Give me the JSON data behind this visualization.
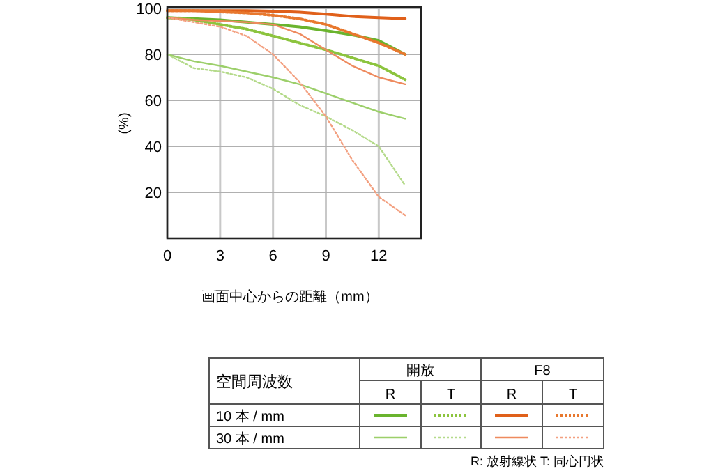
{
  "chart_data": {
    "type": "line",
    "xlabel": "画面中心からの距離（mm）",
    "ylabel": "(%)",
    "x": [
      0,
      1.5,
      3,
      4.5,
      6,
      7.5,
      9,
      10.5,
      12,
      13.5
    ],
    "xlim": [
      0,
      14.4
    ],
    "xticks": [
      0,
      3,
      6,
      9,
      12
    ],
    "ylim": [
      0,
      100
    ],
    "yticks": [
      20,
      40,
      60,
      80,
      100
    ],
    "grid": true,
    "legend_title": "空間周波数",
    "annotations": [
      "開放",
      "F8",
      "R",
      "T",
      "10 本 / mm",
      "30 本 / mm",
      "R: 放射線状  T: 同心円状"
    ],
    "series": [
      {
        "color": "#6ab42e",
        "line_style": "solid",
        "values": [
          96,
          95.5,
          95,
          94,
          93,
          92,
          90.3,
          88.5,
          86,
          80
        ]
      },
      {
        "color": "#8cc43e",
        "line_style": "dotted",
        "values": [
          96,
          95,
          93,
          91,
          88,
          85,
          82,
          78.5,
          75,
          69
        ]
      },
      {
        "color": "#e0601a",
        "line_style": "solid",
        "values": [
          99,
          99,
          99,
          99,
          98.8,
          98.3,
          97.5,
          96.5,
          96,
          95.5
        ]
      },
      {
        "color": "#e8782e",
        "line_style": "dotted",
        "values": [
          99,
          99,
          98.5,
          98,
          97,
          95.5,
          93,
          89,
          85,
          80
        ]
      },
      {
        "color": "#9ccf6a",
        "line_style": "solid",
        "values": [
          80,
          77,
          75,
          72.5,
          70,
          67,
          63,
          59,
          55,
          52
        ]
      },
      {
        "color": "#b4da8a",
        "line_style": "dotted",
        "values": [
          80,
          74,
          72.5,
          70,
          65,
          58,
          53,
          47,
          40,
          23
        ]
      },
      {
        "color": "#ee8a5e",
        "line_style": "solid",
        "values": [
          96,
          95,
          94.5,
          94,
          93,
          89,
          82,
          75,
          70,
          67
        ]
      },
      {
        "color": "#f3a080",
        "line_style": "dotted",
        "values": [
          96,
          94,
          92,
          88,
          80,
          68,
          53,
          34,
          18,
          10
        ]
      }
    ]
  }
}
